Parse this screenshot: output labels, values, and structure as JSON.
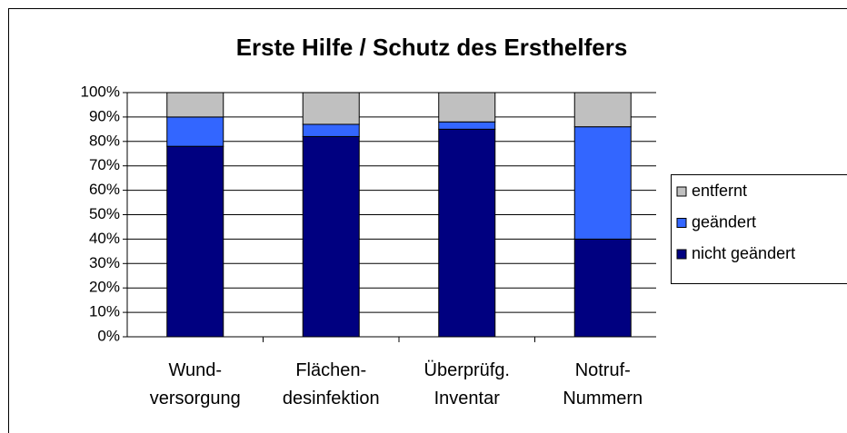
{
  "chart_data": {
    "type": "stacked-bar",
    "title": "Erste Hilfe / Schutz des Ersthelfers",
    "categories": [
      "Wund-\nversorgung",
      "Flächen-\ndesinfektion",
      "Überprüfg.\nInventar",
      "Notruf-\nNummern"
    ],
    "series": [
      {
        "name": "nicht geändert",
        "color": "#000080",
        "values": [
          78,
          82,
          85,
          40
        ]
      },
      {
        "name": "geändert",
        "color": "#3366ff",
        "values": [
          12,
          5,
          3,
          46
        ]
      },
      {
        "name": "entfernt",
        "color": "#c0c0c0",
        "values": [
          10,
          13,
          12,
          14
        ]
      }
    ],
    "ylim": [
      0,
      100
    ],
    "yticks": [
      {
        "value": 0,
        "label": "0%"
      },
      {
        "value": 10,
        "label": "10%"
      },
      {
        "value": 20,
        "label": "20%"
      },
      {
        "value": 30,
        "label": "30%"
      },
      {
        "value": 40,
        "label": "40%"
      },
      {
        "value": 50,
        "label": "50%"
      },
      {
        "value": 60,
        "label": "60%"
      },
      {
        "value": 70,
        "label": "70%"
      },
      {
        "value": 80,
        "label": "80%"
      },
      {
        "value": 90,
        "label": "90%"
      },
      {
        "value": 100,
        "label": "100%"
      }
    ],
    "grid": true,
    "legend": "right"
  }
}
